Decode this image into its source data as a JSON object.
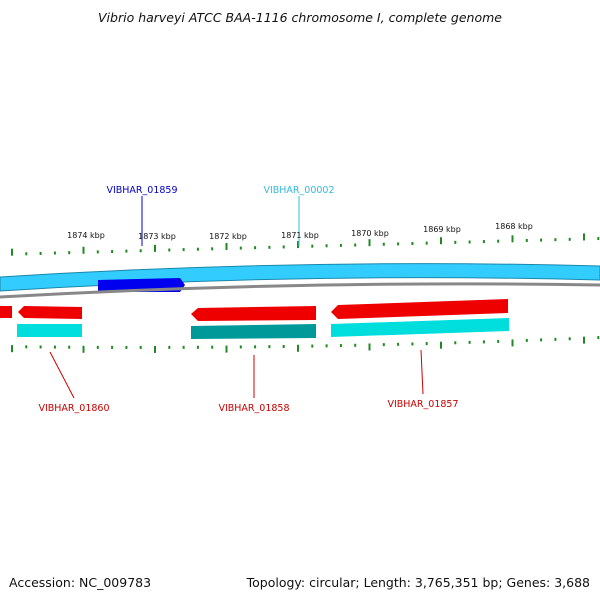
{
  "title": "Vibrio harveyi ATCC BAA-1116 chromosome I, complete genome",
  "footer": {
    "accession": "Accession: NC_009783",
    "summary": "Topology: circular; Length: 3,765,351 bp; Genes: 3,688"
  },
  "ruler_labels": [
    "1874 kbp",
    "1873 kbp",
    "1872 kbp",
    "1871 kbp",
    "1870 kbp",
    "1869 kbp",
    "1868 kbp"
  ],
  "gene_labels": {
    "top": [
      "VIBHAR_01859",
      "VIBHAR_00002"
    ],
    "bottom": [
      "VIBHAR_01860",
      "VIBHAR_01858",
      "VIBHAR_01857"
    ]
  },
  "colors": {
    "forward_cds": "#0000ee",
    "forward_track": "#33ccff",
    "reverse_gene": "#ee0000",
    "reverse_cds": "#00dddd",
    "highlight_cds": "#009999",
    "tick": "#228822",
    "backbone": "#888888",
    "label_blue": "#0000cc",
    "label_cyan": "#33bbdd",
    "label_red": "#cc0000"
  }
}
